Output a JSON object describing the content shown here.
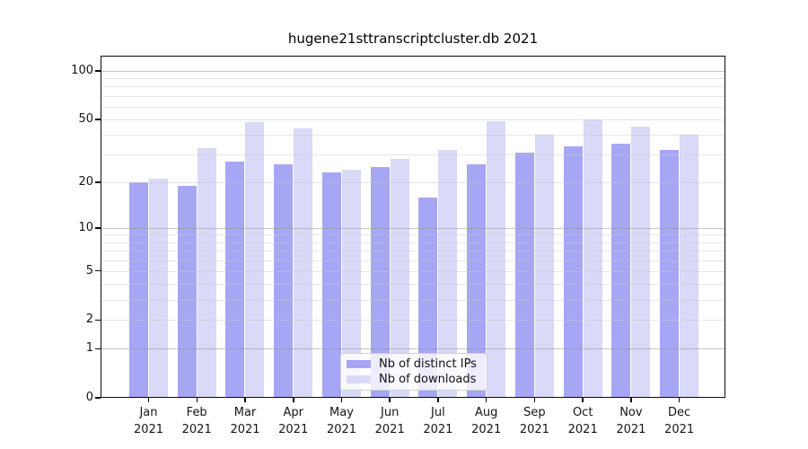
{
  "chart_data": {
    "type": "bar",
    "title": "hugene21sttranscriptcluster.db 2021",
    "categories": [
      "Jan",
      "Feb",
      "Mar",
      "Apr",
      "May",
      "Jun",
      "Jul",
      "Aug",
      "Sep",
      "Oct",
      "Nov",
      "Dec"
    ],
    "year": "2021",
    "series": [
      {
        "name": "Nb of distinct IPs",
        "color": "#a6a6f4",
        "values": [
          20,
          19,
          27,
          26,
          23,
          25,
          16,
          26,
          31,
          34,
          35,
          32
        ]
      },
      {
        "name": "Nb of downloads",
        "color": "#d9d9f8",
        "values": [
          21,
          33,
          48,
          44,
          24,
          28,
          32,
          49,
          40,
          50,
          45,
          40
        ]
      }
    ],
    "xlabel": "",
    "ylabel": "",
    "yscale": "log1p",
    "ylim": [
      0,
      124
    ],
    "yticks": [
      100,
      50,
      20,
      10,
      5,
      2,
      1,
      0
    ],
    "decade_gridlines": [
      1,
      10,
      100
    ],
    "minor_gridlines": [
      3,
      4,
      6,
      7,
      8,
      9,
      30,
      40,
      60,
      70,
      80,
      90
    ],
    "grid": true,
    "legend_position": "lower-center",
    "text_color": "#111111",
    "background_color": "#ffffff"
  }
}
